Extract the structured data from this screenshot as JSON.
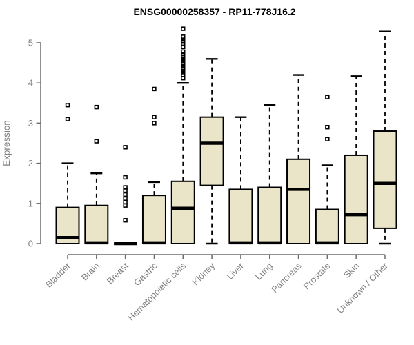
{
  "chart_data": {
    "type": "boxplot",
    "title": "ENSG00000258357 - RP11-778J16.2",
    "ylabel": "Expression",
    "xlabel": "",
    "ylim": [
      0,
      5
    ],
    "yticks": [
      0,
      1,
      2,
      3,
      4,
      5
    ],
    "grid": false,
    "legend": "none",
    "categories": [
      "Bladder",
      "Brain",
      "Breast",
      "Gastric",
      "Hematopoietic cells",
      "Kidney",
      "Liver",
      "Lung",
      "Pancreas",
      "Prostate",
      "Skin",
      "Unknown / Other"
    ],
    "series": [
      {
        "name": "Bladder",
        "whisker_low": 0,
        "q1": 0,
        "median": 0.15,
        "q3": 0.9,
        "whisker_high": 2.0,
        "outliers": [
          3.1,
          3.45
        ]
      },
      {
        "name": "Brain",
        "whisker_low": 0,
        "q1": 0,
        "median": 0.02,
        "q3": 0.95,
        "whisker_high": 1.75,
        "outliers": [
          2.55,
          3.4
        ]
      },
      {
        "name": "Breast",
        "whisker_low": 0,
        "q1": 0,
        "median": 0,
        "q3": 0,
        "whisker_high": 0,
        "outliers": [
          0.58,
          0.95,
          1.03,
          1.12,
          1.22,
          1.32,
          1.4,
          1.65,
          2.4
        ]
      },
      {
        "name": "Gastric",
        "whisker_low": 0,
        "q1": 0,
        "median": 0.02,
        "q3": 1.2,
        "whisker_high": 1.53,
        "outliers": [
          3.0,
          3.15,
          3.85
        ]
      },
      {
        "name": "Hematopoietic cells",
        "whisker_low": 0,
        "q1": 0,
        "median": 0.88,
        "q3": 1.55,
        "whisker_high": 4.0,
        "outliers": [
          4.12,
          4.2,
          4.25,
          4.3,
          4.36,
          4.42,
          4.48,
          4.54,
          4.6,
          4.66,
          4.72,
          4.78,
          4.9,
          4.97,
          5.03,
          5.1,
          5.15,
          5.35
        ]
      },
      {
        "name": "Kidney",
        "whisker_low": 0,
        "q1": 1.45,
        "median": 2.5,
        "q3": 3.15,
        "whisker_high": 4.6,
        "outliers": []
      },
      {
        "name": "Liver",
        "whisker_low": 0,
        "q1": 0,
        "median": 0.02,
        "q3": 1.35,
        "whisker_high": 3.15,
        "outliers": []
      },
      {
        "name": "Lung",
        "whisker_low": 0,
        "q1": 0,
        "median": 0.02,
        "q3": 1.4,
        "whisker_high": 3.45,
        "outliers": []
      },
      {
        "name": "Pancreas",
        "whisker_low": 0,
        "q1": 0,
        "median": 1.35,
        "q3": 2.1,
        "whisker_high": 4.2,
        "outliers": []
      },
      {
        "name": "Prostate",
        "whisker_low": 0,
        "q1": 0,
        "median": 0.02,
        "q3": 0.85,
        "whisker_high": 1.95,
        "outliers": [
          2.6,
          2.9,
          3.65
        ]
      },
      {
        "name": "Skin",
        "whisker_low": 0,
        "q1": 0,
        "median": 0.72,
        "q3": 2.2,
        "whisker_high": 4.17,
        "outliers": []
      },
      {
        "name": "Unknown / Other",
        "whisker_low": 0,
        "q1": 0.38,
        "median": 1.5,
        "q3": 2.8,
        "whisker_high": 5.28,
        "outliers": []
      }
    ],
    "colors": {
      "box_fill": "#eae5c9",
      "box_border": "#000000",
      "median": "#000000",
      "whisker": "#000000",
      "outlier": "#000000",
      "axis": "#6b6b6b",
      "tick_text": "#808080",
      "title_text": "#000000",
      "background": "#ffffff"
    }
  }
}
